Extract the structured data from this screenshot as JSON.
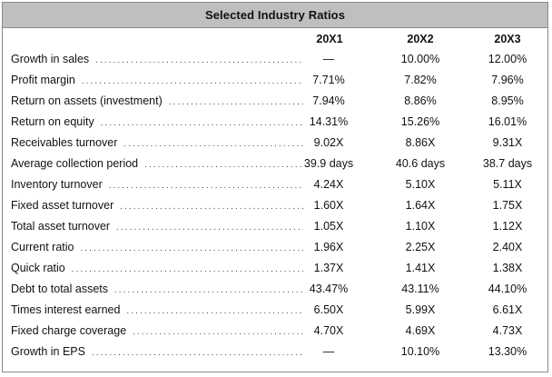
{
  "title": "Selected Industry Ratios",
  "columns": [
    "20X1",
    "20X2",
    "20X3"
  ],
  "rows": [
    {
      "label": "Growth in sales",
      "v1": "—",
      "v2": "10.00%",
      "v3": "12.00%"
    },
    {
      "label": "Profit margin",
      "v1": "7.71%",
      "v2": "7.82%",
      "v3": "7.96%"
    },
    {
      "label": "Return on assets (investment)",
      "v1": "7.94%",
      "v2": "8.86%",
      "v3": "8.95%"
    },
    {
      "label": "Return on equity",
      "v1": "14.31%",
      "v2": "15.26%",
      "v3": "16.01%"
    },
    {
      "label": "Receivables turnover",
      "v1": "9.02X",
      "v2": "8.86X",
      "v3": "9.31X"
    },
    {
      "label": "Average collection period",
      "v1": "39.9 days",
      "v2": "40.6 days",
      "v3": "38.7 days"
    },
    {
      "label": "Inventory turnover",
      "v1": "4.24X",
      "v2": "5.10X",
      "v3": "5.11X"
    },
    {
      "label": "Fixed asset turnover",
      "v1": "1.60X",
      "v2": "1.64X",
      "v3": "1.75X"
    },
    {
      "label": "Total asset turnover",
      "v1": "1.05X",
      "v2": "1.10X",
      "v3": "1.12X"
    },
    {
      "label": "Current ratio",
      "v1": "1.96X",
      "v2": "2.25X",
      "v3": "2.40X"
    },
    {
      "label": "Quick ratio",
      "v1": "1.37X",
      "v2": "1.41X",
      "v3": "1.38X"
    },
    {
      "label": "Debt to total assets",
      "v1": "43.47%",
      "v2": "43.11%",
      "v3": "44.10%"
    },
    {
      "label": "Times interest earned",
      "v1": "6.50X",
      "v2": "5.99X",
      "v3": "6.61X"
    },
    {
      "label": "Fixed charge coverage",
      "v1": "4.70X",
      "v2": "4.69X",
      "v3": "4.73X"
    },
    {
      "label": "Growth in EPS",
      "v1": "—",
      "v2": "10.10%",
      "v3": "13.30%"
    }
  ]
}
